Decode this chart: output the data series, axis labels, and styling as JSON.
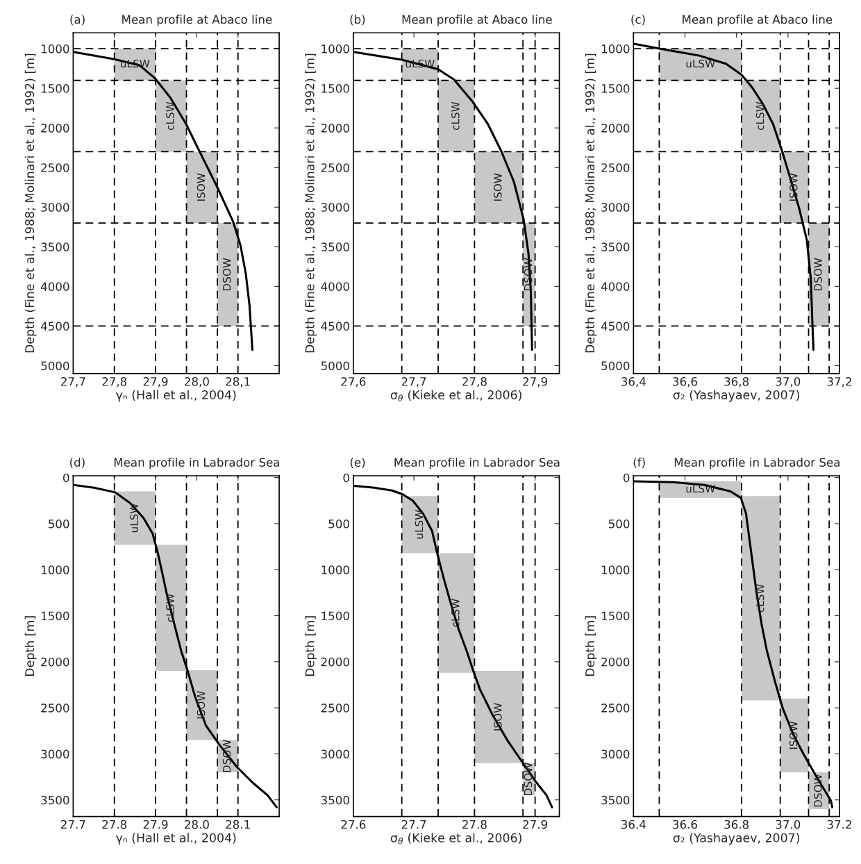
{
  "chart_data": [
    {
      "type": "line",
      "title": "Mean profile at Abaco line",
      "annotations": [
        "(a)"
      ],
      "xlabel": "γₙ (Hall et al., 2004)",
      "ylabel": "Depth (Fine et al., 1988; Molinari et al., 1992) [m]",
      "xlim": [
        27.7,
        28.2
      ],
      "ylim": [
        5100,
        800
      ],
      "xticks": [
        {
          "value": 27.7,
          "label": "27,7"
        },
        {
          "value": 27.8,
          "label": "27,8"
        },
        {
          "value": 27.9,
          "label": "27,9"
        },
        {
          "value": 28.0,
          "label": "28,0"
        },
        {
          "value": 28.1,
          "label": "28,1"
        }
      ],
      "yticks": [
        1000,
        1500,
        2000,
        2500,
        3000,
        3500,
        4000,
        4500,
        5000
      ],
      "grid": false,
      "legend": false,
      "line_style": "solid",
      "ref_lines": [
        {
          "axis": "y",
          "value": 1000,
          "line_style": "dashed"
        },
        {
          "axis": "y",
          "value": 1400,
          "line_style": "dashed"
        },
        {
          "axis": "y",
          "value": 2300,
          "line_style": "dashed"
        },
        {
          "axis": "y",
          "value": 3200,
          "line_style": "dashed"
        },
        {
          "axis": "y",
          "value": 4500,
          "line_style": "dashed"
        },
        {
          "axis": "x",
          "value": 27.8,
          "line_style": "dashed"
        },
        {
          "axis": "x",
          "value": 27.9,
          "line_style": "dashed"
        },
        {
          "axis": "x",
          "value": 27.975,
          "line_style": "dashed"
        },
        {
          "axis": "x",
          "value": 28.05,
          "line_style": "dashed"
        },
        {
          "axis": "x",
          "value": 28.1,
          "line_style": "dashed"
        }
      ],
      "series": [
        {
          "type": "area",
          "name": "uLSW",
          "color": "#c8c8c8",
          "x": [
            27.8,
            27.9,
            27.9,
            27.8
          ],
          "values": [
            1000,
            1000,
            1400,
            1400
          ]
        },
        {
          "type": "area",
          "name": "cLSW",
          "color": "#c8c8c8",
          "x": [
            27.9,
            27.975,
            27.975,
            27.9
          ],
          "values": [
            1400,
            1400,
            2300,
            2300
          ]
        },
        {
          "type": "area",
          "name": "ISOW",
          "color": "#c8c8c8",
          "x": [
            27.975,
            28.05,
            28.05,
            27.975
          ],
          "values": [
            2300,
            2300,
            3200,
            3200
          ]
        },
        {
          "type": "area",
          "name": "DSOW",
          "color": "#c8c8c8",
          "x": [
            28.05,
            28.1,
            28.1,
            28.05
          ],
          "values": [
            3200,
            3200,
            4500,
            4500
          ]
        },
        {
          "color": "#000000",
          "x": [
            27.7,
            27.798,
            27.861,
            27.898,
            27.936,
            27.974,
            28.006,
            28.05,
            28.088,
            28.106,
            28.119,
            28.128,
            28.135
          ],
          "values": [
            1040,
            1130,
            1210,
            1370,
            1620,
            1950,
            2290,
            2750,
            3180,
            3480,
            3840,
            4240,
            4800
          ]
        }
      ]
    },
    {
      "type": "line",
      "title": "Mean profile at Abaco line",
      "annotations": [
        "(b)"
      ],
      "xlabel": "σ$_{θ}$ (Kieke et al., 2006)",
      "ylabel": "Depth (Fine et al., 1988; Molinari et al., 1992) [m]",
      "xlim": [
        27.6,
        27.94
      ],
      "ylim": [
        5100,
        800
      ],
      "xticks": [
        {
          "value": 27.6,
          "label": "27,6"
        },
        {
          "value": 27.7,
          "label": "27,7"
        },
        {
          "value": 27.8,
          "label": "27,8"
        },
        {
          "value": 27.9,
          "label": "27,9"
        }
      ],
      "yticks": [
        1000,
        1500,
        2000,
        2500,
        3000,
        3500,
        4000,
        4500,
        5000
      ],
      "grid": false,
      "legend": false,
      "line_style": "solid",
      "ref_lines": [
        {
          "axis": "y",
          "value": 1000,
          "line_style": "dashed"
        },
        {
          "axis": "y",
          "value": 1400,
          "line_style": "dashed"
        },
        {
          "axis": "y",
          "value": 2300,
          "line_style": "dashed"
        },
        {
          "axis": "y",
          "value": 3200,
          "line_style": "dashed"
        },
        {
          "axis": "y",
          "value": 4500,
          "line_style": "dashed"
        },
        {
          "axis": "x",
          "value": 27.68,
          "line_style": "dashed"
        },
        {
          "axis": "x",
          "value": 27.74,
          "line_style": "dashed"
        },
        {
          "axis": "x",
          "value": 27.8,
          "line_style": "dashed"
        },
        {
          "axis": "x",
          "value": 27.88,
          "line_style": "dashed"
        },
        {
          "axis": "x",
          "value": 27.9,
          "line_style": "dashed"
        }
      ],
      "series": [
        {
          "type": "area",
          "name": "uLSW",
          "color": "#c8c8c8",
          "x": [
            27.68,
            27.74,
            27.74,
            27.68
          ],
          "values": [
            1000,
            1000,
            1400,
            1400
          ]
        },
        {
          "type": "area",
          "name": "cLSW",
          "color": "#c8c8c8",
          "x": [
            27.74,
            27.8,
            27.8,
            27.74
          ],
          "values": [
            1400,
            1400,
            2300,
            2300
          ]
        },
        {
          "type": "area",
          "name": "ISOW",
          "color": "#c8c8c8",
          "x": [
            27.8,
            27.88,
            27.88,
            27.8
          ],
          "values": [
            2300,
            2300,
            3200,
            3200
          ]
        },
        {
          "type": "area",
          "name": "DSOW",
          "color": "#c8c8c8",
          "x": [
            27.88,
            27.9,
            27.9,
            27.88
          ],
          "values": [
            3200,
            3200,
            4500,
            4500
          ]
        },
        {
          "color": "#000000",
          "x": [
            27.6,
            27.68,
            27.74,
            27.766,
            27.796,
            27.822,
            27.844,
            27.865,
            27.881,
            27.889,
            27.893,
            27.895
          ],
          "values": [
            1040,
            1140,
            1260,
            1390,
            1660,
            1950,
            2290,
            2680,
            3150,
            3580,
            4070,
            4800
          ]
        }
      ]
    },
    {
      "type": "line",
      "title": "Mean profile at Abaco line",
      "annotations": [
        "(c)"
      ],
      "xlabel": "σ₂ (Yashayaev, 2007)",
      "ylabel": "Depth (Fine et al., 1988; Molinari et al., 1992) [m]",
      "xlim": [
        36.4,
        37.2
      ],
      "ylim": [
        5100,
        800
      ],
      "xticks": [
        {
          "value": 36.4,
          "label": "36,4"
        },
        {
          "value": 36.6,
          "label": "36,6"
        },
        {
          "value": 36.8,
          "label": "36,8"
        },
        {
          "value": 37.0,
          "label": "37,0"
        },
        {
          "value": 37.2,
          "label": "37,2"
        }
      ],
      "yticks": [
        1000,
        1500,
        2000,
        2500,
        3000,
        3500,
        4000,
        4500,
        5000
      ],
      "grid": false,
      "legend": false,
      "line_style": "solid",
      "ref_lines": [
        {
          "axis": "y",
          "value": 1000,
          "line_style": "dashed"
        },
        {
          "axis": "y",
          "value": 1400,
          "line_style": "dashed"
        },
        {
          "axis": "y",
          "value": 2300,
          "line_style": "dashed"
        },
        {
          "axis": "y",
          "value": 3200,
          "line_style": "dashed"
        },
        {
          "axis": "y",
          "value": 4500,
          "line_style": "dashed"
        },
        {
          "axis": "x",
          "value": 36.5,
          "line_style": "dashed"
        },
        {
          "axis": "x",
          "value": 36.82,
          "line_style": "dashed"
        },
        {
          "axis": "x",
          "value": 36.97,
          "line_style": "dashed"
        },
        {
          "axis": "x",
          "value": 37.08,
          "line_style": "dashed"
        },
        {
          "axis": "x",
          "value": 37.16,
          "line_style": "dashed"
        }
      ],
      "series": [
        {
          "type": "area",
          "name": "uLSW",
          "color": "#c8c8c8",
          "x": [
            36.5,
            36.82,
            36.82,
            36.5
          ],
          "values": [
            1000,
            1000,
            1400,
            1400
          ]
        },
        {
          "type": "area",
          "name": "cLSW",
          "color": "#c8c8c8",
          "x": [
            36.82,
            36.97,
            36.97,
            36.82
          ],
          "values": [
            1400,
            1400,
            2300,
            2300
          ]
        },
        {
          "type": "area",
          "name": "ISOW",
          "color": "#c8c8c8",
          "x": [
            36.97,
            37.08,
            37.08,
            36.97
          ],
          "values": [
            2300,
            2300,
            3200,
            3200
          ]
        },
        {
          "type": "area",
          "name": "DSOW",
          "color": "#c8c8c8",
          "x": [
            37.08,
            37.16,
            37.16,
            37.08
          ],
          "values": [
            3200,
            3200,
            4500,
            4500
          ]
        },
        {
          "color": "#000000",
          "x": [
            36.405,
            36.501,
            36.658,
            36.759,
            36.82,
            36.861,
            36.901,
            36.942,
            36.977,
            37.013,
            37.043,
            37.073,
            37.089,
            37.094,
            37.099
          ],
          "values": [
            940,
            1000,
            1090,
            1190,
            1330,
            1490,
            1690,
            1950,
            2290,
            2680,
            3010,
            3410,
            3910,
            4400,
            4800
          ]
        }
      ]
    },
    {
      "type": "line",
      "title": "Mean profile in Labrador Sea",
      "annotations": [
        "(d)"
      ],
      "xlabel": "γₙ (Hall et al., 2004)",
      "ylabel": "Depth [m]",
      "xlim": [
        27.7,
        28.2
      ],
      "ylim": [
        3680,
        -20
      ],
      "xticks": [
        27.7,
        27.8,
        27.9,
        {
          "value": 28.0,
          "label": "28.0"
        },
        28.1
      ],
      "yticks": [
        0,
        500,
        1000,
        1500,
        2000,
        2500,
        3000,
        3500
      ],
      "grid": false,
      "legend": false,
      "line_style": "solid",
      "ref_lines": [
        {
          "axis": "x",
          "value": 27.8,
          "line_style": "dashed"
        },
        {
          "axis": "x",
          "value": 27.9,
          "line_style": "dashed"
        },
        {
          "axis": "x",
          "value": 27.975,
          "line_style": "dashed"
        },
        {
          "axis": "x",
          "value": 28.05,
          "line_style": "dashed"
        },
        {
          "axis": "x",
          "value": 28.1,
          "line_style": "dashed"
        }
      ],
      "series": [
        {
          "type": "area",
          "name": "uLSW",
          "color": "#c8c8c8",
          "x": [
            27.8,
            27.9,
            27.9,
            27.8
          ],
          "values": [
            150,
            150,
            730,
            730
          ]
        },
        {
          "type": "area",
          "name": "cLSW",
          "color": "#c8c8c8",
          "x": [
            27.9,
            27.975,
            27.975,
            27.9
          ],
          "values": [
            730,
            730,
            2100,
            2100
          ]
        },
        {
          "type": "area",
          "name": "ISOW",
          "color": "#c8c8c8",
          "x": [
            27.975,
            28.05,
            28.05,
            27.975
          ],
          "values": [
            2090,
            2090,
            2850,
            2850
          ]
        },
        {
          "type": "area",
          "name": "DSOW",
          "color": "#c8c8c8",
          "x": [
            28.05,
            28.1,
            28.1,
            28.05
          ],
          "values": [
            2850,
            2850,
            3200,
            3200
          ]
        },
        {
          "color": "#000000",
          "x": [
            27.701,
            27.751,
            27.802,
            27.839,
            27.871,
            27.893,
            27.905,
            27.915,
            27.927,
            27.946,
            27.962,
            27.978,
            27.996,
            28.022,
            28.053,
            28.097,
            28.135,
            28.172,
            28.194
          ],
          "values": [
            80,
            110,
            160,
            280,
            440,
            610,
            810,
            1010,
            1260,
            1600,
            1880,
            2100,
            2380,
            2690,
            2890,
            3140,
            3310,
            3450,
            3580
          ]
        }
      ]
    },
    {
      "type": "line",
      "title": "Mean profile in Labrador Sea",
      "annotations": [
        "(e)"
      ],
      "xlabel": "σ$_{θ}$ (Kieke et al., 2006)",
      "ylabel": "Depth [m]",
      "xlim": [
        27.6,
        27.94
      ],
      "ylim": [
        3680,
        -20
      ],
      "xticks": [
        27.6,
        27.7,
        27.8,
        27.9
      ],
      "yticks": [
        0,
        500,
        1000,
        1500,
        2000,
        2500,
        3000,
        3500
      ],
      "grid": false,
      "legend": false,
      "line_style": "solid",
      "ref_lines": [
        {
          "axis": "x",
          "value": 27.68,
          "line_style": "dashed"
        },
        {
          "axis": "x",
          "value": 27.74,
          "line_style": "dashed"
        },
        {
          "axis": "x",
          "value": 27.8,
          "line_style": "dashed"
        },
        {
          "axis": "x",
          "value": 27.88,
          "line_style": "dashed"
        },
        {
          "axis": "x",
          "value": 27.9,
          "line_style": "dashed"
        }
      ],
      "series": [
        {
          "type": "area",
          "name": "uLSW",
          "color": "#c8c8c8",
          "x": [
            27.68,
            27.74,
            27.74,
            27.68
          ],
          "values": [
            200,
            200,
            820,
            820
          ]
        },
        {
          "type": "area",
          "name": "cLSW",
          "color": "#c8c8c8",
          "x": [
            27.74,
            27.8,
            27.8,
            27.74
          ],
          "values": [
            820,
            820,
            2120,
            2120
          ]
        },
        {
          "type": "area",
          "name": "ISOW",
          "color": "#c8c8c8",
          "x": [
            27.8,
            27.88,
            27.88,
            27.8
          ],
          "values": [
            2100,
            2100,
            3100,
            3100
          ]
        },
        {
          "type": "area",
          "name": "DSOW",
          "color": "#c8c8c8",
          "x": [
            27.88,
            27.9,
            27.9,
            27.88
          ],
          "values": [
            3100,
            3100,
            3450,
            3450
          ]
        },
        {
          "color": "#000000",
          "x": [
            27.601,
            27.635,
            27.664,
            27.681,
            27.698,
            27.715,
            27.73,
            27.738,
            27.749,
            27.761,
            27.774,
            27.787,
            27.798,
            27.809,
            27.83,
            27.855,
            27.881,
            27.902,
            27.919,
            27.928
          ],
          "values": [
            90,
            110,
            140,
            180,
            250,
            390,
            580,
            810,
            1090,
            1370,
            1650,
            1880,
            2100,
            2300,
            2580,
            2860,
            3110,
            3310,
            3450,
            3580
          ]
        }
      ]
    },
    {
      "type": "line",
      "title": "Mean profile in Labrador Sea",
      "annotations": [
        "(f)"
      ],
      "xlabel": "σ₂ (Yashayaev, 2007)",
      "ylabel": "Depth [m]",
      "xlim": [
        36.4,
        37.2
      ],
      "ylim": [
        3680,
        -20
      ],
      "xticks": [
        36.4,
        36.6,
        36.8,
        {
          "value": 37.0,
          "label": "37.0"
        },
        37.2
      ],
      "yticks": [
        0,
        500,
        1000,
        1500,
        2000,
        2500,
        3000,
        3500
      ],
      "grid": false,
      "legend": false,
      "line_style": "solid",
      "ref_lines": [
        {
          "axis": "x",
          "value": 36.5,
          "line_style": "dashed"
        },
        {
          "axis": "x",
          "value": 36.82,
          "line_style": "dashed"
        },
        {
          "axis": "x",
          "value": 36.97,
          "line_style": "dashed"
        },
        {
          "axis": "x",
          "value": 37.08,
          "line_style": "dashed"
        },
        {
          "axis": "x",
          "value": 37.16,
          "line_style": "dashed"
        }
      ],
      "series": [
        {
          "type": "area",
          "name": "uLSW",
          "color": "#c8c8c8",
          "x": [
            36.5,
            36.82,
            36.82,
            36.5
          ],
          "values": [
            40,
            40,
            220,
            220
          ]
        },
        {
          "type": "area",
          "name": "cLSW",
          "color": "#c8c8c8",
          "x": [
            36.82,
            36.97,
            36.97,
            36.82
          ],
          "values": [
            200,
            200,
            2420,
            2420
          ]
        },
        {
          "type": "area",
          "name": "ISOW",
          "color": "#c8c8c8",
          "x": [
            36.97,
            37.08,
            37.08,
            36.97
          ],
          "values": [
            2400,
            2400,
            3200,
            3200
          ]
        },
        {
          "type": "area",
          "name": "DSOW",
          "color": "#c8c8c8",
          "x": [
            37.08,
            37.16,
            37.16,
            37.08
          ],
          "values": [
            3200,
            3200,
            3600,
            3600
          ]
        },
        {
          "color": "#000000",
          "x": [
            36.402,
            36.554,
            36.675,
            36.777,
            36.817,
            36.837,
            36.857,
            36.877,
            36.898,
            36.918,
            36.949,
            36.979,
            37.019,
            37.06,
            37.111,
            37.167,
            37.172
          ],
          "values": [
            40,
            50,
            80,
            150,
            220,
            390,
            810,
            1230,
            1600,
            1880,
            2210,
            2500,
            2780,
            3000,
            3250,
            3510,
            3580
          ]
        }
      ]
    }
  ]
}
